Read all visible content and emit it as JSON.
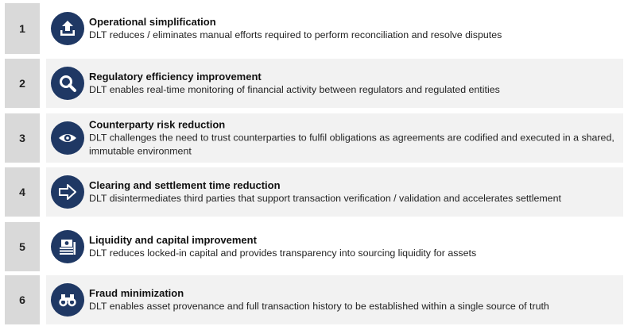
{
  "items": [
    {
      "number": "1",
      "title": "Operational simplification",
      "description": "DLT reduces / eliminates manual efforts required to perform reconciliation and resolve disputes",
      "icon": "upload-tray-icon"
    },
    {
      "number": "2",
      "title": "Regulatory efficiency improvement",
      "description": "DLT enables real-time monitoring of financial activity between regulators and regulated entities",
      "icon": "magnifier-icon"
    },
    {
      "number": "3",
      "title": "Counterparty risk reduction",
      "description": "DLT challenges the need to trust counterparties to fulfil obligations as agreements are codified and executed in a shared, immutable environment",
      "icon": "eye-icon"
    },
    {
      "number": "4",
      "title": "Clearing and settlement time reduction",
      "description": "DLT disintermediates third parties that support transaction verification / validation and accelerates settlement",
      "icon": "arrow-right-icon"
    },
    {
      "number": "5",
      "title": "Liquidity and capital improvement",
      "description": "DLT reduces locked-in capital and provides transparency into sourcing liquidity for assets",
      "icon": "banknotes-icon"
    },
    {
      "number": "6",
      "title": "Fraud minimization",
      "description": "DLT enables asset provenance and full transaction history to be established within a single source of truth",
      "icon": "binoculars-icon"
    }
  ],
  "colors": {
    "icon_circle": "#1f3864",
    "number_box": "#d9d9d9",
    "row_shade": "#f2f2f2"
  }
}
